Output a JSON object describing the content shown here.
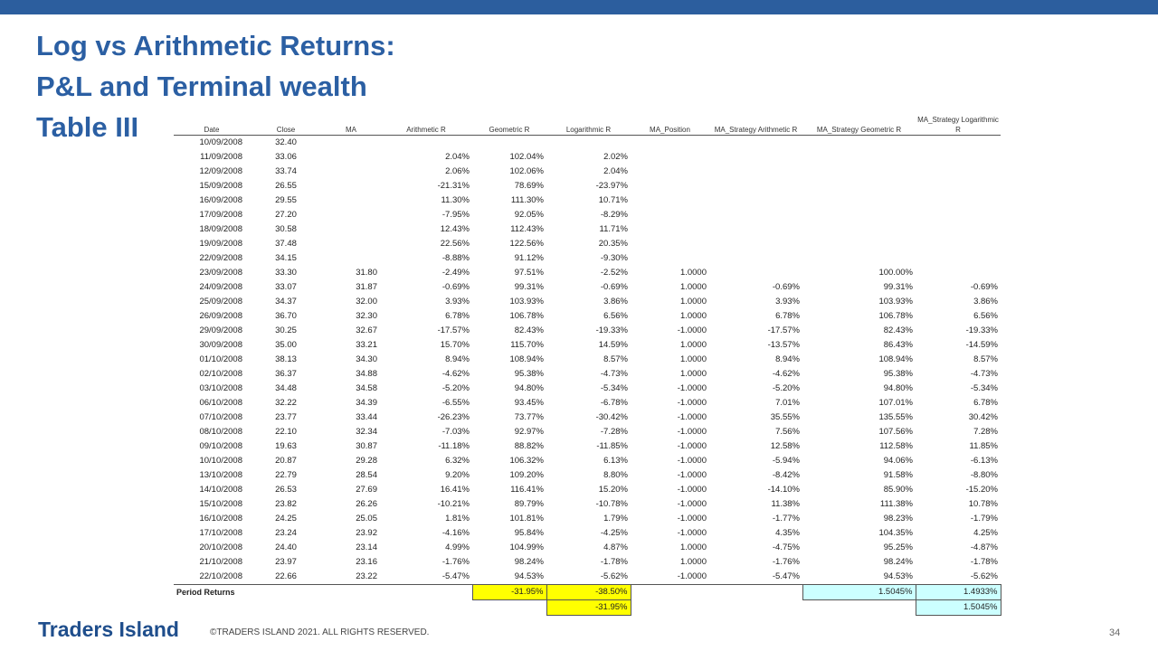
{
  "slide": {
    "title_lines": [
      "Log vs Arithmetic Returns:",
      "P&L and Terminal wealth",
      "Table III"
    ],
    "footer_logo": "Traders Island",
    "copyright": "©TRADERS ISLAND 2021. ALL RIGHTS RESERVED.",
    "page_number": "34"
  },
  "table": {
    "headers": [
      "Date",
      "Close",
      "MA",
      "Arithmetic R",
      "Geometric R",
      "Logarithmic R",
      "MA_Position",
      "MA_Strategy Arithmetic R",
      "MA_Strategy Geometric R",
      "MA_Strategy Logarithmic R"
    ],
    "rows": [
      [
        "10/09/2008",
        "32.40",
        "",
        "",
        "",
        "",
        "",
        "",
        "",
        ""
      ],
      [
        "11/09/2008",
        "33.06",
        "",
        "2.04%",
        "102.04%",
        "2.02%",
        "",
        "",
        "",
        ""
      ],
      [
        "12/09/2008",
        "33.74",
        "",
        "2.06%",
        "102.06%",
        "2.04%",
        "",
        "",
        "",
        ""
      ],
      [
        "15/09/2008",
        "26.55",
        "",
        "-21.31%",
        "78.69%",
        "-23.97%",
        "",
        "",
        "",
        ""
      ],
      [
        "16/09/2008",
        "29.55",
        "",
        "11.30%",
        "111.30%",
        "10.71%",
        "",
        "",
        "",
        ""
      ],
      [
        "17/09/2008",
        "27.20",
        "",
        "-7.95%",
        "92.05%",
        "-8.29%",
        "",
        "",
        "",
        ""
      ],
      [
        "18/09/2008",
        "30.58",
        "",
        "12.43%",
        "112.43%",
        "11.71%",
        "",
        "",
        "",
        ""
      ],
      [
        "19/09/2008",
        "37.48",
        "",
        "22.56%",
        "122.56%",
        "20.35%",
        "",
        "",
        "",
        ""
      ],
      [
        "22/09/2008",
        "34.15",
        "",
        "-8.88%",
        "91.12%",
        "-9.30%",
        "",
        "",
        "",
        ""
      ],
      [
        "23/09/2008",
        "33.30",
        "31.80",
        "-2.49%",
        "97.51%",
        "-2.52%",
        "1.0000",
        "",
        "100.00%",
        ""
      ],
      [
        "24/09/2008",
        "33.07",
        "31.87",
        "-0.69%",
        "99.31%",
        "-0.69%",
        "1.0000",
        "-0.69%",
        "99.31%",
        "-0.69%"
      ],
      [
        "25/09/2008",
        "34.37",
        "32.00",
        "3.93%",
        "103.93%",
        "3.86%",
        "1.0000",
        "3.93%",
        "103.93%",
        "3.86%"
      ],
      [
        "26/09/2008",
        "36.70",
        "32.30",
        "6.78%",
        "106.78%",
        "6.56%",
        "1.0000",
        "6.78%",
        "106.78%",
        "6.56%"
      ],
      [
        "29/09/2008",
        "30.25",
        "32.67",
        "-17.57%",
        "82.43%",
        "-19.33%",
        "-1.0000",
        "-17.57%",
        "82.43%",
        "-19.33%"
      ],
      [
        "30/09/2008",
        "35.00",
        "33.21",
        "15.70%",
        "115.70%",
        "14.59%",
        "1.0000",
        "-13.57%",
        "86.43%",
        "-14.59%"
      ],
      [
        "01/10/2008",
        "38.13",
        "34.30",
        "8.94%",
        "108.94%",
        "8.57%",
        "1.0000",
        "8.94%",
        "108.94%",
        "8.57%"
      ],
      [
        "02/10/2008",
        "36.37",
        "34.88",
        "-4.62%",
        "95.38%",
        "-4.73%",
        "1.0000",
        "-4.62%",
        "95.38%",
        "-4.73%"
      ],
      [
        "03/10/2008",
        "34.48",
        "34.58",
        "-5.20%",
        "94.80%",
        "-5.34%",
        "-1.0000",
        "-5.20%",
        "94.80%",
        "-5.34%"
      ],
      [
        "06/10/2008",
        "32.22",
        "34.39",
        "-6.55%",
        "93.45%",
        "-6.78%",
        "-1.0000",
        "7.01%",
        "107.01%",
        "6.78%"
      ],
      [
        "07/10/2008",
        "23.77",
        "33.44",
        "-26.23%",
        "73.77%",
        "-30.42%",
        "-1.0000",
        "35.55%",
        "135.55%",
        "30.42%"
      ],
      [
        "08/10/2008",
        "22.10",
        "32.34",
        "-7.03%",
        "92.97%",
        "-7.28%",
        "-1.0000",
        "7.56%",
        "107.56%",
        "7.28%"
      ],
      [
        "09/10/2008",
        "19.63",
        "30.87",
        "-11.18%",
        "88.82%",
        "-11.85%",
        "-1.0000",
        "12.58%",
        "112.58%",
        "11.85%"
      ],
      [
        "10/10/2008",
        "20.87",
        "29.28",
        "6.32%",
        "106.32%",
        "6.13%",
        "-1.0000",
        "-5.94%",
        "94.06%",
        "-6.13%"
      ],
      [
        "13/10/2008",
        "22.79",
        "28.54",
        "9.20%",
        "109.20%",
        "8.80%",
        "-1.0000",
        "-8.42%",
        "91.58%",
        "-8.80%"
      ],
      [
        "14/10/2008",
        "26.53",
        "27.69",
        "16.41%",
        "116.41%",
        "15.20%",
        "-1.0000",
        "-14.10%",
        "85.90%",
        "-15.20%"
      ],
      [
        "15/10/2008",
        "23.82",
        "26.26",
        "-10.21%",
        "89.79%",
        "-10.78%",
        "-1.0000",
        "11.38%",
        "111.38%",
        "10.78%"
      ],
      [
        "16/10/2008",
        "24.25",
        "25.05",
        "1.81%",
        "101.81%",
        "1.79%",
        "-1.0000",
        "-1.77%",
        "98.23%",
        "-1.79%"
      ],
      [
        "17/10/2008",
        "23.24",
        "23.92",
        "-4.16%",
        "95.84%",
        "-4.25%",
        "-1.0000",
        "4.35%",
        "104.35%",
        "4.25%"
      ],
      [
        "20/10/2008",
        "24.40",
        "23.14",
        "4.99%",
        "104.99%",
        "4.87%",
        "1.0000",
        "-4.75%",
        "95.25%",
        "-4.87%"
      ],
      [
        "21/10/2008",
        "23.97",
        "23.16",
        "-1.76%",
        "98.24%",
        "-1.78%",
        "1.0000",
        "-1.76%",
        "98.24%",
        "-1.78%"
      ],
      [
        "22/10/2008",
        "22.66",
        "23.22",
        "-5.47%",
        "94.53%",
        "-5.62%",
        "-1.0000",
        "-5.47%",
        "94.53%",
        "-5.62%"
      ]
    ],
    "period_returns": {
      "label": "Period Returns",
      "geometric": "-31.95%",
      "logarithmic": "-38.50%",
      "logarithmic_second": "-31.95%",
      "strategy_geometric": "1.5045%",
      "strategy_logarithmic": "1.4933%",
      "strategy_logarithmic_second": "1.5045%"
    }
  },
  "colors": {
    "top_bar": "#2c5e9e",
    "title": "#2b5fa3",
    "highlight_yellow": "#ffff00",
    "highlight_cyan": "#ccffff"
  }
}
